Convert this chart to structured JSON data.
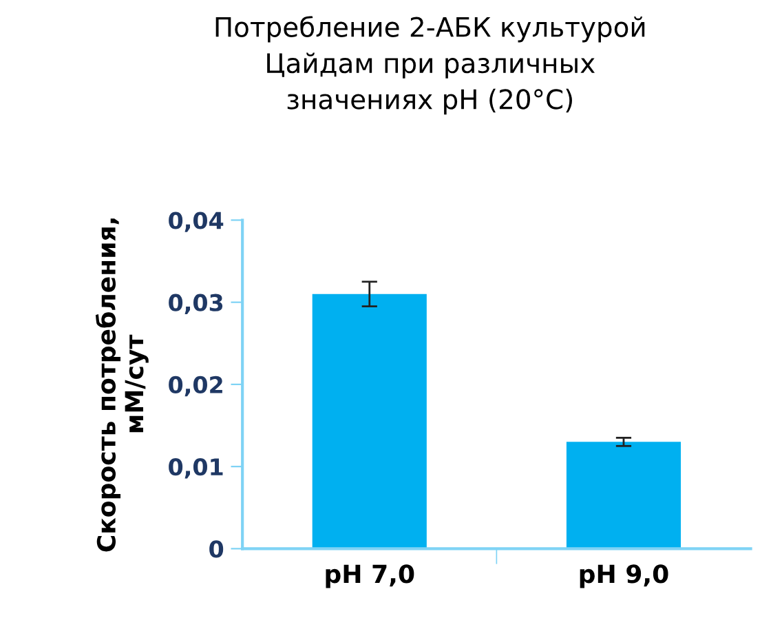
{
  "chart_data": {
    "type": "bar",
    "title": "Потребление 2-АБК культурой\nЦайдам при различных\nзначениях pH (20°C)",
    "ylabel": "Скорость потребления,\nмМ/сут",
    "categories": [
      "pH 7,0",
      "pH 9,0"
    ],
    "values": [
      0.031,
      0.013
    ],
    "errors": [
      0.0015,
      0.0005
    ],
    "color": "#00b0f0",
    "ylim": [
      0,
      0.04
    ],
    "yticks": [
      0,
      {
        "value": 0.01,
        "label": "0,01"
      },
      {
        "value": 0.02,
        "label": "0,02"
      },
      {
        "value": 0.03,
        "label": "0,03"
      },
      {
        "value": 0.04,
        "label": "0,04"
      }
    ],
    "grid": false,
    "legend": false
  }
}
